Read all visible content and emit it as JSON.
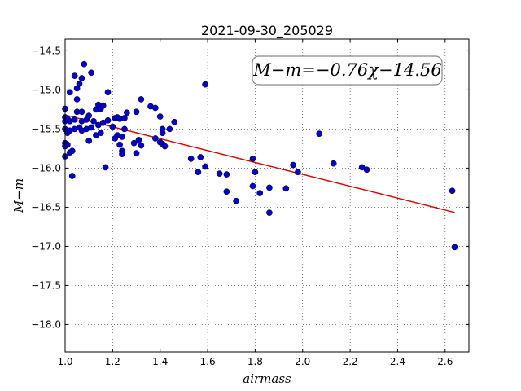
{
  "chart_data": {
    "type": "scatter",
    "title": "2021-09-30_205029",
    "xlabel": "airmass",
    "ylabel": "M−m",
    "xlim": [
      1.0,
      2.7
    ],
    "ylim": [
      -18.35,
      -14.35
    ],
    "y_inverted": true,
    "grid": true,
    "x_ticks": [
      1.0,
      1.2,
      1.4,
      1.6,
      1.8,
      2.0,
      2.2,
      2.4,
      2.6
    ],
    "x_tick_labels": [
      "1.0",
      "1.2",
      "1.4",
      "1.6",
      "1.8",
      "2.0",
      "2.2",
      "2.4",
      "2.6"
    ],
    "y_ticks": [
      -14.5,
      -15.0,
      -15.5,
      -16.0,
      -16.5,
      -17.0,
      -17.5,
      -18.0
    ],
    "y_tick_labels": [
      "−14.5",
      "−15.0",
      "−15.5",
      "−16.0",
      "−16.5",
      "−17.0",
      "−17.5",
      "−18.0"
    ],
    "point_color": "#0000cc",
    "fit_color": "#dd0000",
    "fit": {
      "label": "M−m=−0.76χ−14.56",
      "slope": -0.76,
      "intercept": -14.56,
      "x_range": [
        1.0,
        2.64
      ]
    },
    "points": [
      [
        1.0,
        -15.24
      ],
      [
        1.0,
        -15.35
      ],
      [
        1.0,
        -15.4
      ],
      [
        1.0,
        -15.5
      ],
      [
        1.0,
        -15.68
      ],
      [
        1.0,
        -15.72
      ],
      [
        1.0,
        -15.85
      ],
      [
        1.01,
        -15.37
      ],
      [
        1.01,
        -15.55
      ],
      [
        1.01,
        -15.7
      ],
      [
        1.02,
        -15.03
      ],
      [
        1.02,
        -15.4
      ],
      [
        1.02,
        -15.52
      ],
      [
        1.02,
        -15.8
      ],
      [
        1.03,
        -16.1
      ],
      [
        1.03,
        -15.78
      ],
      [
        1.04,
        -14.82
      ],
      [
        1.04,
        -15.38
      ],
      [
        1.04,
        -15.5
      ],
      [
        1.05,
        -14.98
      ],
      [
        1.05,
        -15.12
      ],
      [
        1.05,
        -15.28
      ],
      [
        1.06,
        -14.92
      ],
      [
        1.06,
        -15.48
      ],
      [
        1.07,
        -14.85
      ],
      [
        1.07,
        -15.28
      ],
      [
        1.07,
        -15.4
      ],
      [
        1.07,
        -15.52
      ],
      [
        1.08,
        -14.67
      ],
      [
        1.09,
        -15.38
      ],
      [
        1.09,
        -15.5
      ],
      [
        1.1,
        -15.33
      ],
      [
        1.1,
        -15.65
      ],
      [
        1.11,
        -14.78
      ],
      [
        1.11,
        -15.48
      ],
      [
        1.12,
        -15.4
      ],
      [
        1.13,
        -15.25
      ],
      [
        1.13,
        -15.58
      ],
      [
        1.14,
        -15.19
      ],
      [
        1.14,
        -15.45
      ],
      [
        1.15,
        -15.24
      ],
      [
        1.15,
        -15.55
      ],
      [
        1.16,
        -15.2
      ],
      [
        1.16,
        -15.42
      ],
      [
        1.17,
        -15.99
      ],
      [
        1.18,
        -15.03
      ],
      [
        1.18,
        -15.39
      ],
      [
        1.2,
        -15.47
      ],
      [
        1.21,
        -15.36
      ],
      [
        1.21,
        -15.62
      ],
      [
        1.22,
        -15.35
      ],
      [
        1.22,
        -15.58
      ],
      [
        1.23,
        -15.37
      ],
      [
        1.23,
        -15.7
      ],
      [
        1.24,
        -15.6
      ],
      [
        1.24,
        -15.78
      ],
      [
        1.24,
        -15.82
      ],
      [
        1.25,
        -15.36
      ],
      [
        1.25,
        -15.5
      ],
      [
        1.26,
        -15.29
      ],
      [
        1.29,
        -15.68
      ],
      [
        1.3,
        -15.81
      ],
      [
        1.3,
        -15.28
      ],
      [
        1.31,
        -15.64
      ],
      [
        1.32,
        -15.12
      ],
      [
        1.32,
        -15.71
      ],
      [
        1.36,
        -15.21
      ],
      [
        1.38,
        -15.62
      ],
      [
        1.38,
        -15.23
      ],
      [
        1.4,
        -15.34
      ],
      [
        1.4,
        -15.67
      ],
      [
        1.41,
        -15.5
      ],
      [
        1.41,
        -15.55
      ],
      [
        1.41,
        -15.69
      ],
      [
        1.42,
        -15.72
      ],
      [
        1.44,
        -15.5
      ],
      [
        1.46,
        -15.41
      ],
      [
        1.53,
        -15.88
      ],
      [
        1.56,
        -16.05
      ],
      [
        1.57,
        -15.86
      ],
      [
        1.59,
        -14.93
      ],
      [
        1.59,
        -15.98
      ],
      [
        1.65,
        -16.07
      ],
      [
        1.68,
        -16.08
      ],
      [
        1.68,
        -16.3
      ],
      [
        1.72,
        -16.42
      ],
      [
        1.79,
        -16.23
      ],
      [
        1.79,
        -15.88
      ],
      [
        1.8,
        -16.05
      ],
      [
        1.82,
        -16.32
      ],
      [
        1.86,
        -16.57
      ],
      [
        1.86,
        -16.25
      ],
      [
        1.93,
        -16.26
      ],
      [
        1.96,
        -15.96
      ],
      [
        1.98,
        -16.05
      ],
      [
        2.07,
        -15.56
      ],
      [
        2.13,
        -15.94
      ],
      [
        2.25,
        -15.99
      ],
      [
        2.27,
        -16.02
      ],
      [
        2.63,
        -16.29
      ],
      [
        2.64,
        -17.01
      ]
    ]
  }
}
